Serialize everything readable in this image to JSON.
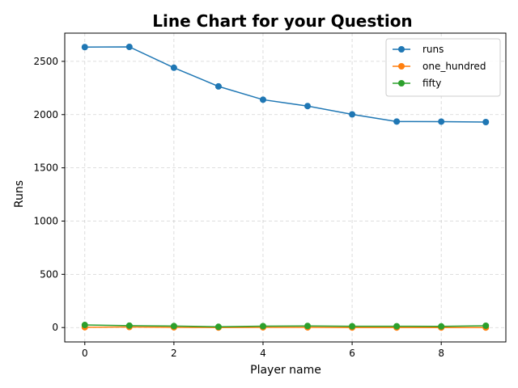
{
  "chart_data": {
    "type": "line",
    "title": "Line Chart for your Question",
    "xlabel": "Player name",
    "ylabel": "Runs",
    "x": [
      0,
      1,
      2,
      3,
      4,
      5,
      6,
      7,
      8,
      9
    ],
    "xlim": [
      -0.45,
      9.45
    ],
    "ylim": [
      -135,
      2765
    ],
    "xticks": [
      0,
      2,
      4,
      6,
      8
    ],
    "yticks": [
      0,
      500,
      1000,
      1500,
      2000,
      2500
    ],
    "grid": true,
    "legend_position": "top-right",
    "series": [
      {
        "name": "runs",
        "color": "#1f77b4",
        "values": [
          2634,
          2636,
          2440,
          2265,
          2140,
          2080,
          2002,
          1935,
          1934,
          1930
        ]
      },
      {
        "name": "one_hundred",
        "color": "#ff7f0e",
        "values": [
          3,
          5,
          2,
          0,
          2,
          2,
          0,
          0,
          0,
          0
        ]
      },
      {
        "name": "fifty",
        "color": "#2ca02c",
        "values": [
          24,
          18,
          14,
          7,
          13,
          15,
          12,
          12,
          11,
          17
        ]
      }
    ]
  }
}
